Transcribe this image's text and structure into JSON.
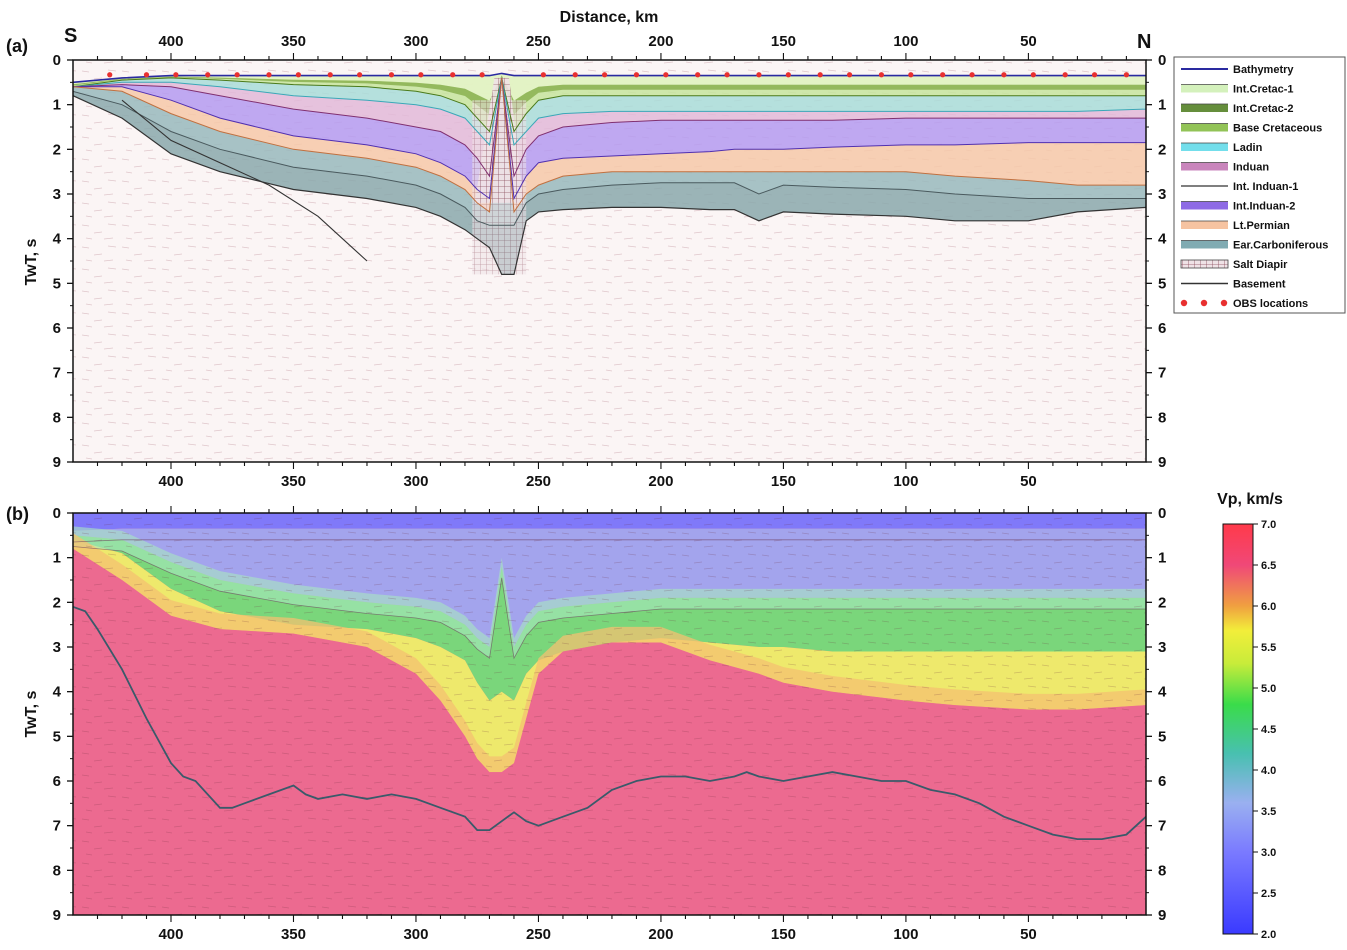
{
  "figure": {
    "panel_a_label": "(a)",
    "panel_b_label": "(b)",
    "south_label": "S",
    "north_label": "N",
    "xlabel": "Distance, km",
    "ylabel": "TwT, s",
    "colorbar_title": "Vp, km/s"
  },
  "chart_data": [
    {
      "type": "area",
      "panel": "a",
      "xlabel": "Distance, km",
      "ylabel": "TwT, s",
      "xlim": [
        440,
        2
      ],
      "ylim": [
        9,
        0
      ],
      "x_ticks": [
        400,
        350,
        300,
        250,
        200,
        150,
        100,
        50
      ],
      "y_ticks": [
        0,
        1,
        2,
        3,
        4,
        5,
        6,
        7,
        8,
        9
      ],
      "legend_position": "right",
      "legend": [
        {
          "name": "Bathymetry",
          "color": "#2a2aa0",
          "style": "line"
        },
        {
          "name": "Int.Cretac-1",
          "color": "#cdeeb0",
          "style": "band"
        },
        {
          "name": "Int.Cretac-2",
          "color": "#4a7a1a",
          "style": "band"
        },
        {
          "name": "Base Cretaceous",
          "color": "#7fb83a",
          "style": "band"
        },
        {
          "name": "Ladin",
          "color": "#5ad8e8",
          "style": "band"
        },
        {
          "name": "Induan",
          "color": "#c070b0",
          "style": "band"
        },
        {
          "name": "Int. Induan-1",
          "color": "#555555",
          "style": "line"
        },
        {
          "name": "Int.Induan-2",
          "color": "#7a50e0",
          "style": "band"
        },
        {
          "name": "Lt.Permian",
          "color": "#f4b890",
          "style": "band"
        },
        {
          "name": "Ear.Carboniferous",
          "color": "#6a9ca4",
          "style": "band"
        },
        {
          "name": "Salt Diapir",
          "color": "#333333",
          "style": "hatch"
        },
        {
          "name": "Basement",
          "color": "#333333",
          "style": "line"
        },
        {
          "name": "OBS locations",
          "color": "#e83030",
          "style": "dots"
        }
      ],
      "horizons": {
        "x": [
          440,
          420,
          400,
          380,
          350,
          320,
          300,
          290,
          280,
          275,
          270,
          265,
          260,
          255,
          250,
          240,
          220,
          200,
          180,
          170,
          160,
          150,
          130,
          100,
          80,
          50,
          30,
          2
        ],
        "bathymetry": [
          0.5,
          0.4,
          0.35,
          0.35,
          0.35,
          0.35,
          0.35,
          0.35,
          0.35,
          0.35,
          0.35,
          0.3,
          0.35,
          0.35,
          0.35,
          0.35,
          0.35,
          0.35,
          0.35,
          0.35,
          0.35,
          0.35,
          0.35,
          0.35,
          0.35,
          0.35,
          0.35,
          0.35
        ],
        "base_cretaceous": [
          0.6,
          0.45,
          0.4,
          0.45,
          0.55,
          0.6,
          0.7,
          0.8,
          1.0,
          1.3,
          1.6,
          0.4,
          1.6,
          1.2,
          0.9,
          0.8,
          0.8,
          0.8,
          0.8,
          0.8,
          0.8,
          0.8,
          0.8,
          0.8,
          0.8,
          0.8,
          0.8,
          0.8
        ],
        "ladin": [
          0.6,
          0.5,
          0.5,
          0.6,
          0.8,
          0.9,
          1.0,
          1.1,
          1.3,
          1.6,
          1.9,
          0.4,
          1.9,
          1.6,
          1.3,
          1.2,
          1.15,
          1.15,
          1.15,
          1.15,
          1.15,
          1.15,
          1.15,
          1.15,
          1.15,
          1.15,
          1.15,
          1.1
        ],
        "induan": [
          0.6,
          0.55,
          0.6,
          0.8,
          1.1,
          1.3,
          1.5,
          1.6,
          1.9,
          2.2,
          2.6,
          0.4,
          2.6,
          2.0,
          1.7,
          1.5,
          1.4,
          1.35,
          1.35,
          1.35,
          1.35,
          1.35,
          1.35,
          1.3,
          1.3,
          1.3,
          1.3,
          1.3
        ],
        "int_induan_2": [
          0.6,
          0.6,
          0.9,
          1.3,
          1.7,
          1.9,
          2.1,
          2.3,
          2.6,
          2.9,
          3.1,
          0.4,
          3.1,
          2.6,
          2.3,
          2.2,
          2.15,
          2.1,
          2.05,
          2.0,
          2.0,
          2.0,
          1.95,
          1.9,
          1.9,
          1.85,
          1.85,
          1.85
        ],
        "lt_permian": [
          0.6,
          0.7,
          1.2,
          1.6,
          2.0,
          2.2,
          2.4,
          2.6,
          2.9,
          3.2,
          3.4,
          0.4,
          3.4,
          3.0,
          2.8,
          2.6,
          2.5,
          2.5,
          2.5,
          2.5,
          2.5,
          2.5,
          2.5,
          2.5,
          2.6,
          2.7,
          2.8,
          2.8
        ],
        "ear_carboniferous": [
          0.7,
          1.0,
          1.6,
          2.0,
          2.4,
          2.6,
          2.8,
          3.0,
          3.3,
          3.6,
          3.7,
          3.7,
          3.7,
          3.2,
          3.0,
          2.9,
          2.8,
          2.75,
          2.75,
          2.75,
          3.0,
          2.8,
          2.85,
          2.9,
          3.0,
          3.1,
          3.1,
          3.1
        ],
        "basement": [
          0.8,
          1.3,
          2.1,
          2.5,
          2.9,
          3.1,
          3.3,
          3.5,
          3.8,
          4.0,
          4.2,
          4.8,
          4.8,
          3.6,
          3.4,
          3.35,
          3.3,
          3.3,
          3.35,
          3.35,
          3.6,
          3.4,
          3.45,
          3.5,
          3.6,
          3.6,
          3.4,
          3.3
        ]
      },
      "salt_diapir": {
        "x_range": [
          277,
          255
        ],
        "top": 0.35,
        "bottom": 4.8
      },
      "deep_reflector": {
        "x": [
          420,
          400,
          380,
          360,
          340,
          330,
          320
        ],
        "t": [
          0.9,
          1.8,
          2.3,
          2.8,
          3.5,
          4.0,
          4.5
        ]
      },
      "obs_locations_x": [
        425,
        410,
        398,
        385,
        373,
        360,
        348,
        335,
        323,
        310,
        298,
        285,
        273,
        248,
        235,
        223,
        210,
        198,
        185,
        173,
        160,
        148,
        135,
        123,
        110,
        98,
        85,
        73,
        60,
        48,
        35,
        23,
        10
      ]
    },
    {
      "type": "heatmap",
      "panel": "b",
      "xlabel": "Distance, km",
      "ylabel": "TwT, s",
      "xlim": [
        440,
        2
      ],
      "ylim": [
        9,
        0
      ],
      "x_ticks": [
        400,
        350,
        300,
        250,
        200,
        150,
        100,
        50
      ],
      "y_ticks": [
        0,
        1,
        2,
        3,
        4,
        5,
        6,
        7,
        8,
        9
      ],
      "colorbar": {
        "title": "Vp, km/s",
        "range": [
          2.0,
          7.0
        ],
        "ticks": [
          "7.0",
          "6.5",
          "6.0",
          "5.5",
          "5.0",
          "4.5",
          "4.0",
          "3.5",
          "3.0",
          "2.5",
          "2.0"
        ],
        "stops": [
          {
            "v": 2.0,
            "color": "#3a3aff"
          },
          {
            "v": 3.0,
            "color": "#7a7aff"
          },
          {
            "v": 3.6,
            "color": "#9ab0f0"
          },
          {
            "v": 4.2,
            "color": "#48c0b0"
          },
          {
            "v": 4.8,
            "color": "#3adc4a"
          },
          {
            "v": 5.3,
            "color": "#c8ec3a"
          },
          {
            "v": 5.7,
            "color": "#f2ee3a"
          },
          {
            "v": 6.0,
            "color": "#f0a040"
          },
          {
            "v": 6.5,
            "color": "#f04878"
          },
          {
            "v": 7.0,
            "color": "#ff3a4a"
          }
        ]
      },
      "velocity_contours": {
        "x": [
          440,
          420,
          400,
          380,
          350,
          320,
          300,
          290,
          280,
          275,
          270,
          265,
          260,
          255,
          250,
          240,
          220,
          200,
          180,
          160,
          150,
          130,
          100,
          80,
          50,
          30,
          2
        ],
        "vp_3_5": [
          0.4,
          0.35,
          0.35,
          0.35,
          0.35,
          0.35,
          0.35,
          0.35,
          0.35,
          0.35,
          0.35,
          0.35,
          0.35,
          0.35,
          0.35,
          0.35,
          0.35,
          0.35,
          0.35,
          0.35,
          0.35,
          0.35,
          0.35,
          0.35,
          0.35,
          0.35,
          0.35
        ],
        "vp_4_5": [
          0.5,
          0.6,
          1.1,
          1.5,
          1.8,
          2.0,
          2.1,
          2.2,
          2.5,
          2.8,
          3.0,
          1.2,
          3.0,
          2.5,
          2.2,
          2.1,
          2.0,
          1.9,
          1.9,
          1.9,
          1.9,
          1.9,
          1.9,
          1.9,
          1.9,
          1.9,
          1.9
        ],
        "vp_5_5": [
          0.6,
          0.9,
          1.7,
          2.2,
          2.5,
          2.6,
          2.8,
          3.0,
          3.3,
          3.8,
          4.2,
          4.0,
          4.2,
          3.6,
          3.3,
          3.1,
          2.9,
          2.8,
          2.9,
          3.0,
          3.0,
          3.1,
          3.1,
          3.1,
          3.1,
          3.1,
          3.1
        ],
        "vp_6_0": [
          0.8,
          1.5,
          2.3,
          2.6,
          2.7,
          3.0,
          3.6,
          4.2,
          5.0,
          5.5,
          5.8,
          5.8,
          5.6,
          4.6,
          3.6,
          3.1,
          2.9,
          2.9,
          3.3,
          3.6,
          3.8,
          4.0,
          4.2,
          4.3,
          4.4,
          4.4,
          4.3
        ]
      },
      "basement": {
        "x": [
          440,
          435,
          430,
          420,
          410,
          400,
          395,
          390,
          380,
          375,
          370,
          360,
          350,
          345,
          340,
          330,
          320,
          310,
          300,
          290,
          280,
          275,
          270,
          265,
          260,
          255,
          250,
          240,
          230,
          220,
          210,
          200,
          190,
          180,
          170,
          165,
          160,
          150,
          140,
          130,
          120,
          110,
          100,
          90,
          80,
          70,
          60,
          50,
          40,
          30,
          20,
          10,
          2
        ],
        "t": [
          2.1,
          2.2,
          2.6,
          3.5,
          4.6,
          5.6,
          5.9,
          6.0,
          6.6,
          6.6,
          6.5,
          6.3,
          6.1,
          6.3,
          6.4,
          6.3,
          6.4,
          6.3,
          6.4,
          6.6,
          6.8,
          7.1,
          7.1,
          6.9,
          6.7,
          6.9,
          7.0,
          6.8,
          6.6,
          6.2,
          6.0,
          5.9,
          5.9,
          6.0,
          5.9,
          5.8,
          5.9,
          6.0,
          5.9,
          5.8,
          5.9,
          6.0,
          6.0,
          6.2,
          6.3,
          6.5,
          6.8,
          7.0,
          7.2,
          7.3,
          7.3,
          7.2,
          6.8
        ]
      }
    }
  ]
}
